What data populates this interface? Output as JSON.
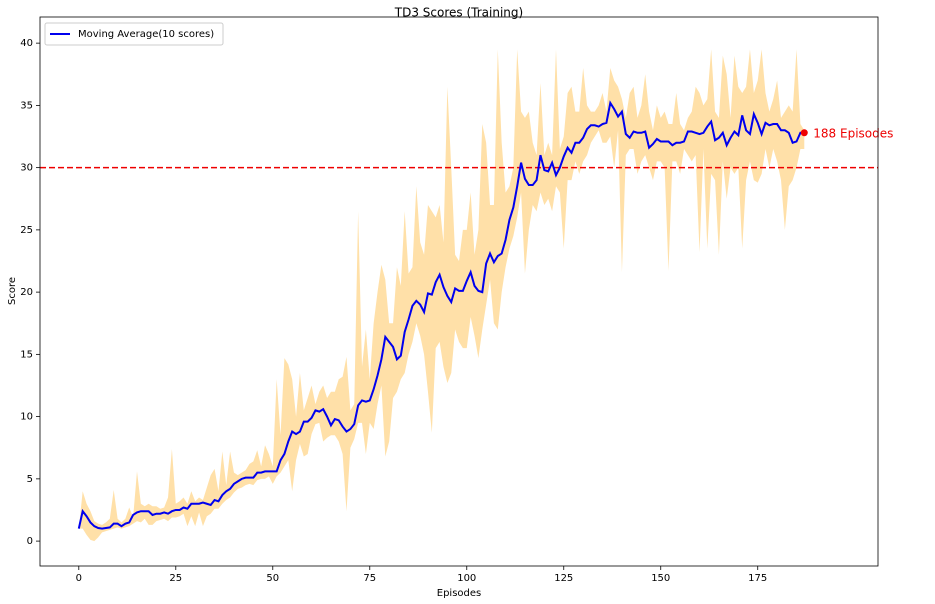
{
  "chart_data": {
    "type": "line",
    "title": "TD3 Scores (Training)",
    "x_label": "Episodes",
    "y_label": "Score",
    "x": [
      0,
      1,
      2,
      3,
      4,
      5,
      6,
      7,
      8,
      9,
      10,
      11,
      12,
      13,
      14,
      15,
      16,
      17,
      18,
      19,
      20,
      21,
      22,
      23,
      24,
      25,
      26,
      27,
      28,
      29,
      30,
      31,
      32,
      33,
      34,
      35,
      36,
      37,
      38,
      39,
      40,
      41,
      42,
      43,
      44,
      45,
      46,
      47,
      48,
      49,
      50,
      51,
      52,
      53,
      54,
      55,
      56,
      57,
      58,
      59,
      60,
      61,
      62,
      63,
      64,
      65,
      66,
      67,
      68,
      69,
      70,
      71,
      72,
      73,
      74,
      75,
      76,
      77,
      78,
      79,
      80,
      81,
      82,
      83,
      84,
      85,
      86,
      87,
      88,
      89,
      90,
      91,
      92,
      93,
      94,
      95,
      96,
      97,
      98,
      99,
      100,
      101,
      102,
      103,
      104,
      105,
      106,
      107,
      108,
      109,
      110,
      111,
      112,
      113,
      114,
      115,
      116,
      117,
      118,
      119,
      120,
      121,
      122,
      123,
      124,
      125,
      126,
      127,
      128,
      129,
      130,
      131,
      132,
      133,
      134,
      135,
      136,
      137,
      138,
      139,
      140,
      141,
      142,
      143,
      144,
      145,
      146,
      147,
      148,
      149,
      150,
      151,
      152,
      153,
      154,
      155,
      156,
      157,
      158,
      159,
      160,
      161,
      162,
      163,
      164,
      165,
      166,
      167,
      168,
      169,
      170,
      171,
      172,
      173,
      174,
      175,
      176,
      177,
      178,
      179,
      180,
      181,
      182,
      183,
      184,
      185,
      186,
      187
    ],
    "series": [
      {
        "name": "Moving Average(10 scores)",
        "color": "#0000ee",
        "values": [
          1.0,
          2.4,
          2.0,
          1.5,
          1.2,
          1.05,
          1.0,
          1.05,
          1.1,
          1.4,
          1.4,
          1.2,
          1.4,
          1.5,
          2.1,
          2.3,
          2.4,
          2.4,
          2.4,
          2.1,
          2.2,
          2.2,
          2.3,
          2.2,
          2.4,
          2.5,
          2.5,
          2.7,
          2.6,
          3.0,
          3.0,
          3.0,
          3.1,
          3.0,
          2.9,
          3.3,
          3.2,
          3.7,
          4.0,
          4.2,
          4.6,
          4.8,
          5.0,
          5.1,
          5.1,
          5.1,
          5.5,
          5.5,
          5.6,
          5.6,
          5.6,
          5.6,
          6.5,
          7.0,
          8.0,
          8.8,
          8.6,
          8.8,
          9.6,
          9.6,
          9.9,
          10.5,
          10.4,
          10.6,
          10.0,
          9.3,
          9.8,
          9.7,
          9.2,
          8.8,
          9.0,
          9.4,
          10.9,
          11.3,
          11.2,
          11.3,
          12.2,
          13.3,
          14.6,
          16.4,
          16.0,
          15.6,
          14.6,
          14.9,
          16.8,
          17.8,
          18.9,
          19.3,
          19.0,
          18.4,
          19.9,
          19.8,
          20.8,
          21.4,
          20.4,
          19.7,
          19.2,
          20.3,
          20.1,
          20.1,
          20.9,
          21.6,
          20.5,
          20.1,
          20.0,
          22.3,
          23.1,
          22.4,
          22.9,
          23.1,
          24.2,
          25.8,
          26.8,
          28.5,
          30.4,
          29.1,
          28.6,
          28.6,
          29.0,
          31.0,
          29.8,
          29.7,
          30.4,
          29.4,
          30.0,
          30.9,
          31.6,
          31.2,
          32.0,
          32.0,
          32.4,
          33.1,
          33.4,
          33.4,
          33.3,
          33.5,
          33.6,
          35.2,
          34.7,
          34.1,
          34.5,
          32.7,
          32.4,
          32.9,
          32.8,
          32.8,
          32.9,
          31.6,
          31.9,
          32.3,
          32.1,
          32.1,
          32.1,
          31.8,
          32.0,
          32.0,
          32.1,
          32.9,
          32.9,
          32.8,
          32.7,
          32.8,
          33.3,
          33.7,
          32.2,
          32.4,
          32.8,
          31.8,
          32.4,
          32.9,
          32.6,
          34.2,
          33.0,
          32.7,
          34.3,
          33.6,
          32.7,
          33.6,
          33.4,
          33.5,
          33.5,
          33.0,
          33.0,
          32.8,
          32.0,
          32.1,
          32.8,
          32.8
        ]
      }
    ],
    "band": {
      "color": "#ffe0a8",
      "lower": [
        1.0,
        1.0,
        0.5,
        0.1,
        0.0,
        0.3,
        0.7,
        0.8,
        0.9,
        1.0,
        1.1,
        1.0,
        1.1,
        1.2,
        1.4,
        1.6,
        1.5,
        1.8,
        1.3,
        1.3,
        1.6,
        1.7,
        1.8,
        1.6,
        1.9,
        1.9,
        2.0,
        2.2,
        1.2,
        2.0,
        1.2,
        2.3,
        1.2,
        2.0,
        2.2,
        2.6,
        2.6,
        3.0,
        3.3,
        3.5,
        3.9,
        4.2,
        4.3,
        4.5,
        4.6,
        4.5,
        4.9,
        5.0,
        5.0,
        5.2,
        4.6,
        5.2,
        5.5,
        6.0,
        6.5,
        4.0,
        6.5,
        7.8,
        6.8,
        7.0,
        8.6,
        9.4,
        9.5,
        8.0,
        8.3,
        8.5,
        8.5,
        8.0,
        7.0,
        2.4,
        7.5,
        8.2,
        9.5,
        9.5,
        7.0,
        9.5,
        9.0,
        11.0,
        12.5,
        6.8,
        8.0,
        11.5,
        12.0,
        13.0,
        13.5,
        15.0,
        16.0,
        17.5,
        16.5,
        15.0,
        12.0,
        8.7,
        15.5,
        16.0,
        14.0,
        12.7,
        13.5,
        17.0,
        16.0,
        15.5,
        15.5,
        18.0,
        16.5,
        14.7,
        17.0,
        19.0,
        21.0,
        17.5,
        17.0,
        20.0,
        22.0,
        23.5,
        24.5,
        26.0,
        28.0,
        21.5,
        25.0,
        27.0,
        26.5,
        28.0,
        27.0,
        27.5,
        26.5,
        28.5,
        28.0,
        23.5,
        29.0,
        29.0,
        30.5,
        29.5,
        30.5,
        31.0,
        32.0,
        32.5,
        33.0,
        32.0,
        32.0,
        32.5,
        30.0,
        33.0,
        21.6,
        31.0,
        31.5,
        31.5,
        29.5,
        30.5,
        31.0,
        30.0,
        29.0,
        30.5,
        30.5,
        30.0,
        21.7,
        30.5,
        30.5,
        29.5,
        31.5,
        31.0,
        30.5,
        31.0,
        23.2,
        31.5,
        23.5,
        29.5,
        29.0,
        23.0,
        30.5,
        27.5,
        30.0,
        29.5,
        30.0,
        23.5,
        29.0,
        30.5,
        29.0,
        28.8,
        29.5,
        31.5,
        30.0,
        31.5,
        30.5,
        29.0,
        25.0,
        28.5,
        29.0,
        30.0,
        31.5,
        31.5
      ],
      "upper": [
        1.0,
        4.0,
        3.0,
        2.4,
        1.6,
        1.4,
        1.3,
        1.5,
        1.8,
        4.1,
        1.8,
        1.5,
        1.8,
        2.7,
        1.9,
        5.6,
        3.0,
        2.8,
        3.0,
        2.8,
        2.8,
        2.6,
        2.7,
        3.5,
        7.4,
        3.0,
        3.2,
        3.5,
        3.0,
        4.0,
        3.2,
        3.5,
        3.3,
        4.3,
        5.3,
        5.8,
        4.0,
        7.2,
        4.5,
        7.2,
        5.5,
        5.3,
        5.5,
        5.7,
        6.2,
        6.4,
        7.3,
        6.0,
        7.7,
        7.0,
        6.0,
        13.0,
        8.5,
        14.7,
        14.2,
        13.0,
        10.0,
        13.5,
        10.5,
        11.5,
        12.5,
        11.0,
        12.0,
        12.5,
        11.5,
        12.0,
        12.0,
        13.0,
        13.2,
        14.8,
        10.5,
        11.0,
        26.5,
        14.0,
        17.0,
        13.0,
        17.5,
        20.0,
        22.2,
        21.0,
        17.5,
        17.5,
        22.0,
        20.5,
        26.5,
        21.5,
        22.0,
        28.5,
        24.0,
        23.0,
        27.0,
        26.5,
        26.0,
        27.0,
        24.0,
        36.5,
        30.0,
        23.0,
        22.5,
        25.0,
        25.0,
        28.0,
        23.0,
        25.0,
        33.5,
        32.0,
        27.0,
        27.0,
        39.5,
        32.0,
        28.0,
        28.5,
        30.0,
        39.5,
        34.5,
        34.0,
        34.5,
        32.0,
        31.0,
        36.8,
        31.0,
        32.0,
        31.0,
        39.5,
        31.5,
        32.5,
        36.0,
        36.5,
        34.5,
        34.5,
        38.0,
        35.0,
        34.5,
        34.5,
        35.0,
        36.0,
        34.5,
        38.0,
        37.0,
        36.5,
        35.5,
        34.0,
        36.0,
        36.5,
        34.0,
        35.0,
        37.5,
        34.5,
        33.0,
        35.0,
        34.0,
        34.5,
        33.5,
        33.5,
        36.0,
        33.5,
        33.0,
        34.0,
        34.5,
        36.5,
        36.0,
        35.0,
        35.5,
        39.5,
        34.5,
        34.0,
        39.0,
        37.5,
        34.0,
        39.0,
        36.5,
        36.0,
        36.5,
        39.5,
        36.0,
        37.0,
        39.5,
        36.0,
        34.5,
        35.5,
        37.0,
        34.0,
        34.5,
        35.0,
        34.5,
        39.5,
        33.5,
        33.0
      ]
    },
    "target": {
      "value": 30,
      "color": "#ee0000"
    },
    "annotation": {
      "text": "188 Episodes",
      "x": 187,
      "y": 32.8,
      "color": "#ee0000"
    },
    "xlim": [
      -10,
      206
    ],
    "ylim": [
      -2,
      42.1
    ],
    "xticks": [
      0,
      25,
      50,
      75,
      100,
      125,
      150,
      175
    ],
    "yticks": [
      0,
      5,
      10,
      15,
      20,
      25,
      30,
      35,
      40
    ],
    "legend": "upper left"
  }
}
